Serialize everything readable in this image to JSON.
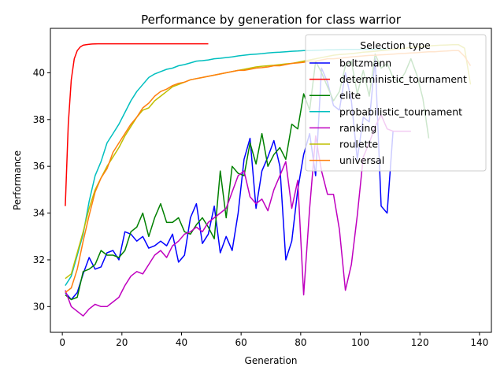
{
  "chart_data": {
    "type": "line",
    "title": "Performance by generation for class warrior",
    "xlabel": "Generation",
    "ylabel": "Performance",
    "xlim": [
      -4,
      144
    ],
    "ylim": [
      28.9,
      41.9
    ],
    "xticks": [
      0,
      20,
      40,
      60,
      80,
      100,
      120,
      140
    ],
    "yticks": [
      30,
      32,
      34,
      36,
      38,
      40
    ],
    "grid": false,
    "legend": {
      "title": "Selection type",
      "placement": "top-right"
    },
    "series": [
      {
        "name": "boltzmann",
        "color": "#0000ff",
        "x": [
          1,
          3,
          5,
          7,
          9,
          11,
          13,
          15,
          17,
          19,
          21,
          23,
          25,
          27,
          29,
          31,
          33,
          35,
          37,
          39,
          41,
          43,
          45,
          47,
          49,
          51,
          53,
          55,
          57,
          59,
          61,
          63,
          65,
          67,
          69,
          71,
          73,
          75,
          77,
          79,
          81,
          83,
          85,
          87,
          89,
          91,
          93,
          95,
          97,
          99,
          101,
          103,
          105,
          107,
          109,
          111
        ],
        "y": [
          30.6,
          30.3,
          30.6,
          31.4,
          32.1,
          31.6,
          31.7,
          32.3,
          32.4,
          32.0,
          33.2,
          33.1,
          32.8,
          33.0,
          32.5,
          32.6,
          32.8,
          32.6,
          33.1,
          31.9,
          32.2,
          33.8,
          34.4,
          32.7,
          33.1,
          34.3,
          32.3,
          33.0,
          32.4,
          34.0,
          36.3,
          37.2,
          34.2,
          35.8,
          36.4,
          37.1,
          36.0,
          32.0,
          32.8,
          35.0,
          36.5,
          37.4,
          35.6,
          40.2,
          39.6,
          38.6,
          38.4,
          40.0,
          38.8,
          36.3,
          38.1,
          37.9,
          40.6,
          34.3,
          34.0,
          37.5
        ]
      },
      {
        "name": "deterministic_tournament",
        "color": "#ff0000",
        "x": [
          1,
          2,
          3,
          4,
          5,
          6,
          7,
          8,
          9,
          10,
          12,
          14,
          16,
          18,
          20,
          25,
          30,
          35,
          40,
          45,
          49
        ],
        "y": [
          34.3,
          37.8,
          39.7,
          40.6,
          40.95,
          41.1,
          41.18,
          41.2,
          41.22,
          41.23,
          41.24,
          41.24,
          41.24,
          41.24,
          41.24,
          41.24,
          41.24,
          41.24,
          41.24,
          41.24,
          41.24
        ]
      },
      {
        "name": "elite",
        "color": "#008000",
        "x": [
          1,
          3,
          5,
          7,
          9,
          11,
          13,
          15,
          17,
          19,
          21,
          23,
          25,
          27,
          29,
          31,
          33,
          35,
          37,
          39,
          41,
          43,
          45,
          47,
          49,
          51,
          53,
          55,
          57,
          59,
          61,
          63,
          65,
          67,
          69,
          71,
          73,
          75,
          77,
          79,
          81,
          83,
          85,
          87,
          89,
          91,
          93,
          95,
          97,
          99,
          101,
          103,
          105,
          107,
          109,
          111,
          113,
          115,
          117,
          119,
          121,
          123
        ],
        "y": [
          30.5,
          30.3,
          30.4,
          31.5,
          31.6,
          31.8,
          32.4,
          32.2,
          32.2,
          32.1,
          32.4,
          33.2,
          33.4,
          34.0,
          33.0,
          33.8,
          34.4,
          33.6,
          33.6,
          33.8,
          33.2,
          33.1,
          33.5,
          33.8,
          33.4,
          32.9,
          35.8,
          33.8,
          36.0,
          35.7,
          35.6,
          37.0,
          36.1,
          37.4,
          36.0,
          36.5,
          36.8,
          36.3,
          37.8,
          37.6,
          39.1,
          38.4,
          40.5,
          40.0,
          39.4,
          38.8,
          39.2,
          40.3,
          40.5,
          39.1,
          40.1,
          39.0,
          40.8,
          40.2,
          40.4,
          39.8,
          39.6,
          40.0,
          40.6,
          39.9,
          38.9,
          37.2
        ]
      },
      {
        "name": "probabilistic_tournament",
        "color": "#00bfbf",
        "x": [
          1,
          3,
          5,
          7,
          9,
          11,
          13,
          15,
          17,
          19,
          21,
          23,
          25,
          27,
          29,
          31,
          33,
          35,
          37,
          39,
          41,
          43,
          45,
          47,
          49,
          51,
          53,
          55,
          57,
          59,
          61,
          63,
          65,
          67,
          69,
          71,
          73,
          75,
          77,
          79,
          81,
          83,
          85,
          87,
          89,
          91,
          93,
          95,
          97,
          99,
          101,
          103,
          105,
          107,
          109
        ],
        "y": [
          30.9,
          31.3,
          32.2,
          33.1,
          34.5,
          35.6,
          36.2,
          37.0,
          37.4,
          37.8,
          38.3,
          38.8,
          39.2,
          39.5,
          39.8,
          39.95,
          40.05,
          40.15,
          40.2,
          40.3,
          40.35,
          40.42,
          40.5,
          40.52,
          40.55,
          40.6,
          40.62,
          40.65,
          40.68,
          40.72,
          40.75,
          40.78,
          40.8,
          40.82,
          40.85,
          40.87,
          40.88,
          40.9,
          40.92,
          40.93,
          40.95,
          40.95,
          40.96,
          40.97,
          40.98,
          40.98,
          40.99,
          41.0,
          41.0,
          41.0,
          41.0,
          41.0,
          41.0,
          41.0,
          41.0
        ]
      },
      {
        "name": "ranking",
        "color": "#bf00bf",
        "x": [
          1,
          3,
          5,
          7,
          9,
          11,
          13,
          15,
          17,
          19,
          21,
          23,
          25,
          27,
          29,
          31,
          33,
          35,
          37,
          39,
          41,
          43,
          45,
          47,
          49,
          51,
          53,
          55,
          57,
          59,
          61,
          63,
          65,
          67,
          69,
          71,
          73,
          75,
          77,
          79,
          81,
          83,
          85,
          87,
          89,
          91,
          93,
          95,
          97,
          99,
          101,
          103,
          105,
          107,
          109,
          111,
          113,
          115,
          117
        ],
        "y": [
          30.7,
          30.0,
          29.8,
          29.6,
          29.9,
          30.1,
          30.0,
          30.0,
          30.2,
          30.4,
          30.9,
          31.3,
          31.5,
          31.4,
          31.8,
          32.2,
          32.4,
          32.1,
          32.6,
          32.8,
          33.1,
          33.2,
          33.4,
          33.2,
          33.6,
          33.8,
          34.0,
          34.2,
          34.9,
          35.6,
          35.8,
          34.7,
          34.4,
          34.6,
          34.1,
          35.0,
          35.6,
          36.2,
          34.2,
          35.4,
          30.5,
          34.2,
          37.3,
          35.8,
          34.8,
          34.8,
          33.3,
          30.7,
          31.8,
          33.9,
          36.4,
          37.0,
          37.7,
          38.2,
          37.6,
          37.5,
          37.5,
          37.5,
          37.5
        ]
      },
      {
        "name": "roulette",
        "color": "#bfbf00",
        "x": [
          1,
          3,
          5,
          7,
          9,
          11,
          13,
          15,
          17,
          19,
          21,
          23,
          25,
          27,
          29,
          31,
          33,
          35,
          37,
          39,
          41,
          43,
          45,
          47,
          49,
          51,
          53,
          55,
          57,
          59,
          61,
          63,
          65,
          67,
          69,
          71,
          73,
          75,
          77,
          79,
          81,
          83,
          85,
          87,
          89,
          91,
          93,
          95,
          97,
          99,
          101,
          103,
          105,
          107,
          109,
          111,
          113,
          115,
          117,
          119,
          121,
          123,
          125,
          127,
          129,
          131,
          133,
          135,
          137
        ],
        "y": [
          31.2,
          31.4,
          32.3,
          33.2,
          34.2,
          35.0,
          35.5,
          36.0,
          36.4,
          36.8,
          37.3,
          37.7,
          38.1,
          38.4,
          38.5,
          38.8,
          39.0,
          39.2,
          39.4,
          39.5,
          39.6,
          39.7,
          39.75,
          39.8,
          39.85,
          39.9,
          39.95,
          40.0,
          40.05,
          40.1,
          40.15,
          40.2,
          40.25,
          40.28,
          40.3,
          40.32,
          40.35,
          40.38,
          40.4,
          40.45,
          40.5,
          40.55,
          40.6,
          40.65,
          40.7,
          40.75,
          40.78,
          40.8,
          40.82,
          40.85,
          40.88,
          40.9,
          40.92,
          40.95,
          40.97,
          41.0,
          41.02,
          41.05,
          41.08,
          41.1,
          41.12,
          41.15,
          41.17,
          41.18,
          41.19,
          41.2,
          41.2,
          41.05,
          39.5
        ]
      },
      {
        "name": "universal",
        "color": "#ff7f0e",
        "x": [
          1,
          3,
          5,
          7,
          9,
          11,
          13,
          15,
          17,
          19,
          21,
          23,
          25,
          27,
          29,
          31,
          33,
          35,
          37,
          39,
          41,
          43,
          45,
          47,
          49,
          51,
          53,
          55,
          57,
          59,
          61,
          63,
          65,
          67,
          69,
          71,
          73,
          75,
          77,
          79,
          81,
          83,
          85,
          87,
          89,
          91,
          93,
          95,
          97,
          99,
          101,
          103,
          105,
          107,
          109,
          111,
          113,
          115,
          117,
          119,
          121,
          123,
          125,
          127,
          129,
          131,
          133,
          135,
          137
        ],
        "y": [
          30.6,
          30.8,
          31.6,
          32.8,
          33.9,
          34.9,
          35.5,
          35.9,
          36.6,
          37.0,
          37.4,
          37.8,
          38.1,
          38.5,
          38.7,
          39.0,
          39.2,
          39.3,
          39.45,
          39.55,
          39.6,
          39.7,
          39.75,
          39.8,
          39.85,
          39.9,
          39.95,
          40.0,
          40.05,
          40.1,
          40.1,
          40.15,
          40.2,
          40.22,
          40.25,
          40.3,
          40.3,
          40.35,
          40.4,
          40.42,
          40.45,
          40.5,
          40.5,
          40.55,
          40.6,
          40.6,
          40.62,
          40.65,
          40.68,
          40.7,
          40.72,
          40.74,
          40.75,
          40.77,
          40.78,
          40.8,
          40.82,
          40.83,
          40.85,
          40.86,
          40.88,
          40.9,
          40.9,
          40.92,
          40.93,
          40.95,
          40.95,
          40.7,
          40.3
        ]
      }
    ]
  }
}
